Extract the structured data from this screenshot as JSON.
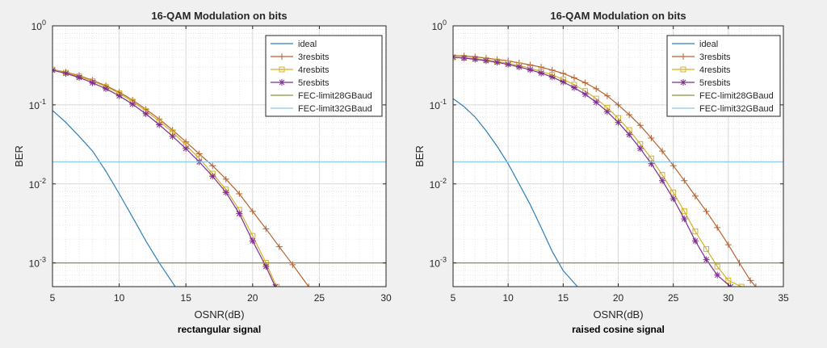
{
  "chart_data": [
    {
      "type": "line",
      "title": "16-QAM Modulation on bits",
      "xlabel": "OSNR(dB)",
      "ylabel": "BER",
      "caption": "rectangular signal",
      "xlim": [
        5,
        30
      ],
      "ylim_exp": [
        -3.3,
        0
      ],
      "yscale": "log",
      "grid": true,
      "legend_position": "top-right",
      "x_ticks": [
        "5",
        "10",
        "15",
        "20",
        "25",
        "30"
      ],
      "y_ticks": [
        {
          "base": "10",
          "exp": "0"
        },
        {
          "base": "10",
          "exp": "-1"
        },
        {
          "base": "10",
          "exp": "-2"
        },
        {
          "base": "10",
          "exp": "-3"
        }
      ],
      "series": [
        {
          "name": "ideal",
          "color": "#2f7fb6",
          "marker": "none",
          "x": [
            5,
            6,
            7,
            8,
            9,
            10,
            11,
            12,
            13,
            14.2
          ],
          "y": [
            0.085,
            0.06,
            0.04,
            0.026,
            0.0145,
            0.0075,
            0.0038,
            0.0019,
            0.001,
            0.0005
          ]
        },
        {
          "name": "3resbits",
          "color": "#b5622f",
          "marker": "plus",
          "x": [
            5,
            6,
            7,
            8,
            9,
            10,
            11,
            12,
            13,
            14,
            15,
            16,
            17,
            18,
            19,
            20,
            21,
            22,
            23,
            24.2
          ],
          "y": [
            0.28,
            0.26,
            0.235,
            0.205,
            0.175,
            0.145,
            0.115,
            0.088,
            0.066,
            0.048,
            0.034,
            0.024,
            0.017,
            0.0115,
            0.0075,
            0.0045,
            0.0027,
            0.0016,
            0.00095,
            0.0005
          ]
        },
        {
          "name": "4resbits",
          "color": "#d4b12a",
          "marker": "square",
          "x": [
            5,
            6,
            7,
            8,
            9,
            10,
            11,
            12,
            13,
            14,
            15,
            16,
            17,
            18,
            19,
            20,
            21,
            21.8
          ],
          "y": [
            0.28,
            0.255,
            0.23,
            0.2,
            0.17,
            0.14,
            0.11,
            0.084,
            0.062,
            0.045,
            0.031,
            0.021,
            0.0135,
            0.0085,
            0.0047,
            0.0022,
            0.001,
            0.0005
          ]
        },
        {
          "name": "5resbits",
          "color": "#7b2f8f",
          "marker": "asterisk",
          "x": [
            5,
            6,
            7,
            8,
            9,
            10,
            11,
            12,
            13,
            14,
            15,
            16,
            17,
            18,
            19,
            20,
            21,
            21.7
          ],
          "y": [
            0.275,
            0.25,
            0.222,
            0.19,
            0.16,
            0.13,
            0.102,
            0.077,
            0.056,
            0.04,
            0.028,
            0.019,
            0.0125,
            0.0078,
            0.0042,
            0.0019,
            0.0009,
            0.0005
          ]
        },
        {
          "name": "FEC-limit28GBaud",
          "color": "#8a8f45",
          "marker": "none",
          "x": [
            5,
            30
          ],
          "y": [
            0.001,
            0.001
          ]
        },
        {
          "name": "FEC-limit32GBaud",
          "color": "#8cc8e8",
          "marker": "none",
          "x": [
            5,
            30
          ],
          "y": [
            0.019,
            0.019
          ]
        }
      ]
    },
    {
      "type": "line",
      "title": "16-QAM Modulation on bits",
      "xlabel": "OSNR(dB)",
      "ylabel": "BER",
      "caption": "raised cosine signal",
      "xlim": [
        5,
        35
      ],
      "ylim_exp": [
        -3.3,
        0
      ],
      "yscale": "log",
      "grid": true,
      "legend_position": "top-right",
      "x_ticks": [
        "5",
        "10",
        "15",
        "20",
        "25",
        "30",
        "35"
      ],
      "y_ticks": [
        {
          "base": "10",
          "exp": "0"
        },
        {
          "base": "10",
          "exp": "-1"
        },
        {
          "base": "10",
          "exp": "-2"
        },
        {
          "base": "10",
          "exp": "-3"
        }
      ],
      "series": [
        {
          "name": "ideal",
          "color": "#2f7fb6",
          "marker": "none",
          "x": [
            5,
            6,
            7,
            8,
            9,
            10,
            11,
            12,
            13,
            14,
            15,
            16.3
          ],
          "y": [
            0.12,
            0.095,
            0.07,
            0.047,
            0.03,
            0.018,
            0.01,
            0.0055,
            0.0028,
            0.0014,
            0.0008,
            0.0005
          ]
        },
        {
          "name": "3resbits",
          "color": "#b5622f",
          "marker": "plus",
          "x": [
            5,
            6,
            7,
            8,
            9,
            10,
            11,
            12,
            13,
            14,
            15,
            16,
            17,
            18,
            19,
            20,
            21,
            22,
            23,
            24,
            25,
            26,
            27,
            28,
            29,
            30,
            31,
            32,
            32.5
          ],
          "y": [
            0.42,
            0.415,
            0.405,
            0.39,
            0.375,
            0.36,
            0.34,
            0.32,
            0.3,
            0.275,
            0.25,
            0.22,
            0.19,
            0.16,
            0.13,
            0.1,
            0.075,
            0.055,
            0.038,
            0.026,
            0.017,
            0.011,
            0.007,
            0.0045,
            0.0028,
            0.0017,
            0.001,
            0.0006,
            0.0005
          ]
        },
        {
          "name": "4resbits",
          "color": "#d4b12a",
          "marker": "square",
          "x": [
            5,
            6,
            7,
            8,
            9,
            10,
            11,
            12,
            13,
            14,
            15,
            16,
            17,
            18,
            19,
            20,
            21,
            22,
            23,
            24,
            25,
            26,
            27,
            28,
            29,
            30,
            31.2
          ],
          "y": [
            0.4,
            0.395,
            0.385,
            0.37,
            0.355,
            0.335,
            0.315,
            0.29,
            0.265,
            0.24,
            0.21,
            0.18,
            0.15,
            0.12,
            0.092,
            0.068,
            0.048,
            0.032,
            0.021,
            0.013,
            0.0078,
            0.0045,
            0.0025,
            0.0015,
            0.0009,
            0.0006,
            0.0005
          ]
        },
        {
          "name": "5resbits",
          "color": "#7b2f8f",
          "marker": "asterisk",
          "x": [
            5,
            6,
            7,
            8,
            9,
            10,
            11,
            12,
            13,
            14,
            15,
            16,
            17,
            18,
            19,
            20,
            21,
            22,
            23,
            24,
            25,
            26,
            27,
            28,
            29,
            30.2
          ],
          "y": [
            0.4,
            0.39,
            0.378,
            0.362,
            0.345,
            0.325,
            0.302,
            0.278,
            0.252,
            0.225,
            0.195,
            0.165,
            0.136,
            0.108,
            0.082,
            0.06,
            0.042,
            0.028,
            0.018,
            0.011,
            0.0065,
            0.0036,
            0.0019,
            0.0011,
            0.0007,
            0.0005
          ]
        },
        {
          "name": "FEC-limit28GBaud",
          "color": "#8a8f45",
          "marker": "none",
          "x": [
            5,
            35
          ],
          "y": [
            0.001,
            0.001
          ]
        },
        {
          "name": "FEC-limit32GBaud",
          "color": "#8cc8e8",
          "marker": "none",
          "x": [
            5,
            35
          ],
          "y": [
            0.019,
            0.019
          ]
        }
      ]
    }
  ]
}
